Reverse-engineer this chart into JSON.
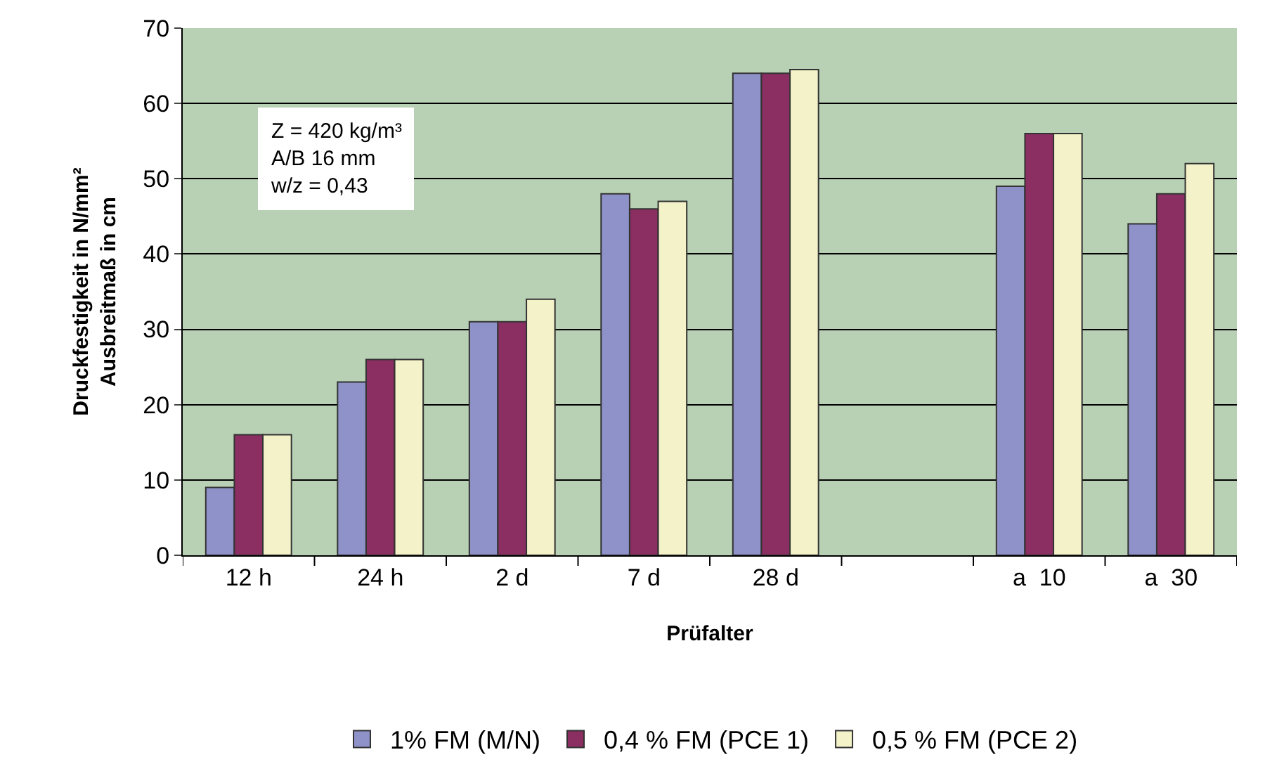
{
  "chart_data": {
    "type": "bar",
    "xlabel": "Prüfalter",
    "ylabel": "Druckfestigkeit in N/mm²\nAusbreitmaß in cm",
    "categories": [
      "12 h",
      "24 h",
      "2 d",
      "7 d",
      "28 d",
      null,
      "a  10",
      "a  30"
    ],
    "series": [
      {
        "name": "1% FM (M/N)",
        "color": "#8f92c8",
        "values": [
          9,
          23,
          31,
          48,
          64,
          null,
          49,
          44
        ]
      },
      {
        "name": "0,4 % FM (PCE 1)",
        "color": "#8b2f63",
        "values": [
          16,
          26,
          31,
          46,
          64,
          null,
          56,
          48
        ]
      },
      {
        "name": "0,5 % FM (PCE 2)",
        "color": "#f3f2c8",
        "values": [
          16,
          26,
          34,
          47,
          64.5,
          null,
          56,
          52
        ]
      }
    ],
    "ylim": [
      0,
      70
    ],
    "yticks": [
      0,
      10,
      20,
      30,
      40,
      50,
      60,
      70
    ],
    "grid": "y",
    "legend": "bottom",
    "annotations": [
      "Z = 420 kg/m³\nA/B 16 mm\nw/z = 0,43"
    ]
  }
}
